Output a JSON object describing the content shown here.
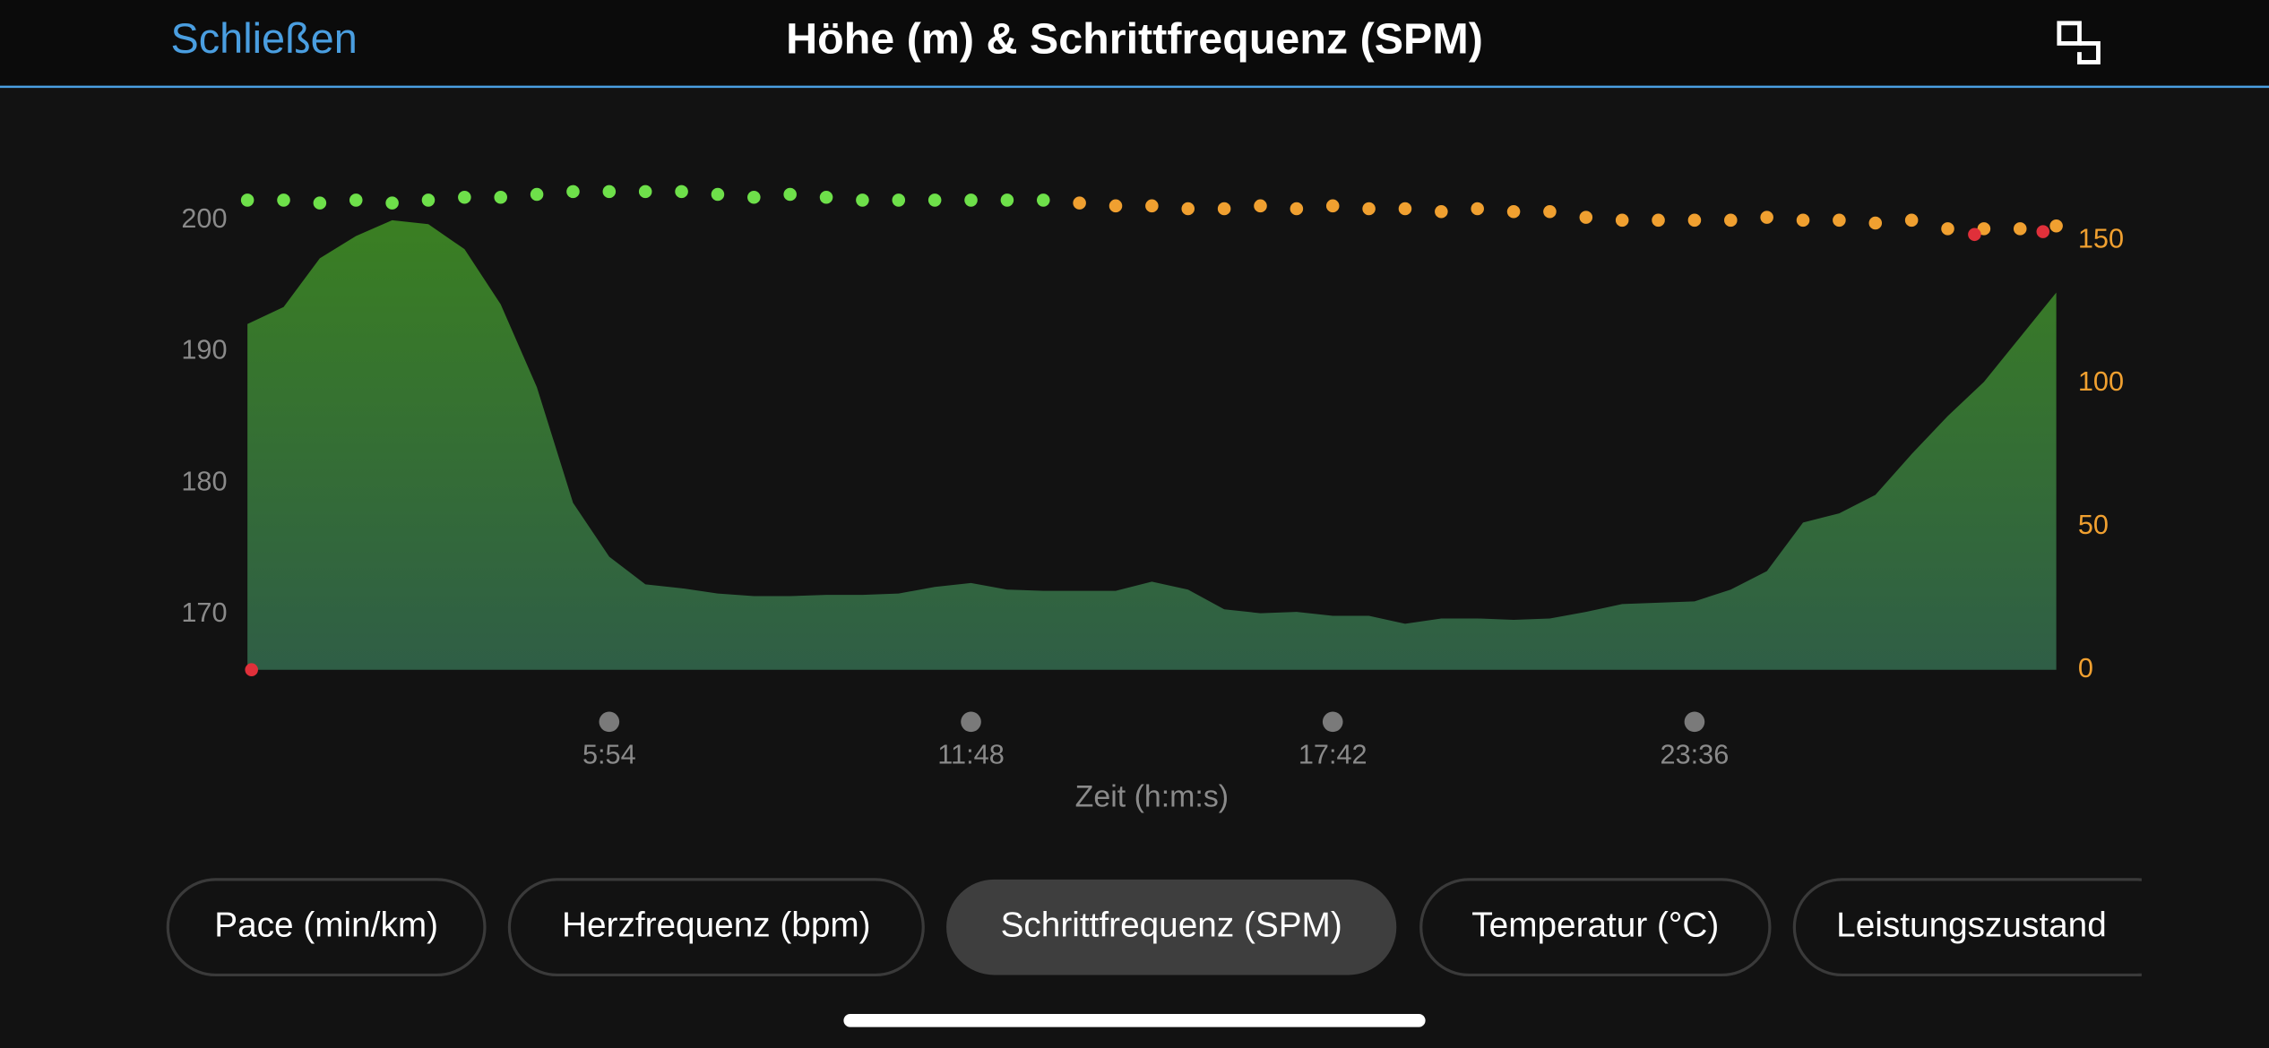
{
  "header": {
    "close": "Schließen",
    "title": "Höhe (m) & Schrittfrequenz (SPM)"
  },
  "chart_data": {
    "type": "area",
    "x_label": "Zeit (h:m:s)",
    "xlim": [
      0,
      1770
    ],
    "xticks": [
      {
        "value": 354,
        "label": "5:54"
      },
      {
        "value": 708,
        "label": "11:48"
      },
      {
        "value": 1062,
        "label": "17:42"
      },
      {
        "value": 1416,
        "label": "23:36"
      }
    ],
    "ylim": [
      165.8,
      204.1
    ],
    "yticks": [
      170,
      180,
      190,
      200
    ],
    "y2lim": [
      0,
      175.8
    ],
    "y2ticks": [
      0,
      50,
      100,
      150
    ],
    "x": [
      0,
      35.4,
      70.8,
      106.2,
      141.6,
      177,
      212.4,
      247.8,
      283.2,
      318.6,
      354,
      389.4,
      424.8,
      460.2,
      495.6,
      531,
      566.4,
      601.8,
      637.2,
      672.6,
      708,
      743.4,
      778.8,
      814.2,
      849.6,
      885,
      920.4,
      955.8,
      991.2,
      1026.6,
      1062,
      1097.4,
      1132.8,
      1168.2,
      1203.6,
      1239,
      1274.4,
      1309.8,
      1345.2,
      1380.6,
      1416,
      1451.4,
      1486.8,
      1522.2,
      1557.6,
      1593,
      1628.4,
      1663.8,
      1699.2,
      1734.6,
      1770
    ],
    "series": [
      {
        "type": "area",
        "color": "#3a7f2b",
        "values": [
          192.1,
          193.4,
          197.1,
          198.8,
          200.0,
          199.7,
          197.8,
          193.6,
          187.3,
          178.5,
          174.4,
          172.3,
          172.0,
          171.6,
          171.4,
          171.4,
          171.5,
          171.5,
          171.6,
          172.1,
          172.4,
          171.9,
          171.8,
          171.8,
          171.8,
          172.5,
          171.9,
          170.4,
          170.1,
          170.2,
          169.9,
          169.9,
          169.3,
          169.7,
          169.7,
          169.6,
          169.7,
          170.2,
          170.8,
          170.9,
          171.0,
          171.9,
          173.3,
          177.0,
          177.7,
          179.1,
          182.2,
          185.1,
          187.7,
          191.1,
          194.5
        ]
      },
      {
        "type": "scatter",
        "axis": "y2",
        "color": "#6ee04a",
        "x": [
          0,
          35.4,
          70.8,
          106.2,
          141.6,
          177,
          212.4,
          247.8,
          283.2,
          318.6,
          354,
          389.4,
          424.8,
          460.2,
          495.6,
          531,
          566.4,
          601.8,
          637.2,
          672.6,
          708,
          743.4,
          778.8
        ],
        "values": [
          164,
          164,
          163,
          164,
          163,
          164,
          165,
          165,
          166,
          167,
          167,
          167,
          167,
          166,
          165,
          166,
          165,
          164,
          164,
          164,
          164,
          164,
          164
        ]
      },
      {
        "type": "scatter",
        "axis": "y2",
        "color": "#f0a030",
        "x": [
          814.2,
          849.6,
          885,
          920.4,
          955.8,
          991.2,
          1026.6,
          1062,
          1097.4,
          1132.8,
          1168.2,
          1203.6,
          1239,
          1274.4,
          1309.8,
          1345.2,
          1380.6,
          1416,
          1451.4,
          1486.8,
          1522.2,
          1557.6,
          1593,
          1628.4,
          1663.8,
          1699.2,
          1734.6,
          1770
        ],
        "values": [
          163,
          162,
          162,
          161,
          161,
          162,
          161,
          162,
          161,
          161,
          160,
          161,
          160,
          160,
          158,
          157,
          157,
          157,
          157,
          158,
          157,
          157,
          156,
          157,
          154,
          154,
          154,
          155
        ]
      },
      {
        "type": "scatter",
        "axis": "y2",
        "color": "#e0303a",
        "x": [
          4,
          1690,
          1757
        ],
        "values": [
          0,
          152,
          153
        ]
      }
    ]
  },
  "tabs": [
    {
      "label": "Pace (min/km)"
    },
    {
      "label": "Herzfrequenz (bpm)"
    },
    {
      "label": "Schrittfrequenz (SPM)",
      "selected": true
    },
    {
      "label": "Temperatur (°C)"
    },
    {
      "label": "Leistungszustand"
    }
  ]
}
